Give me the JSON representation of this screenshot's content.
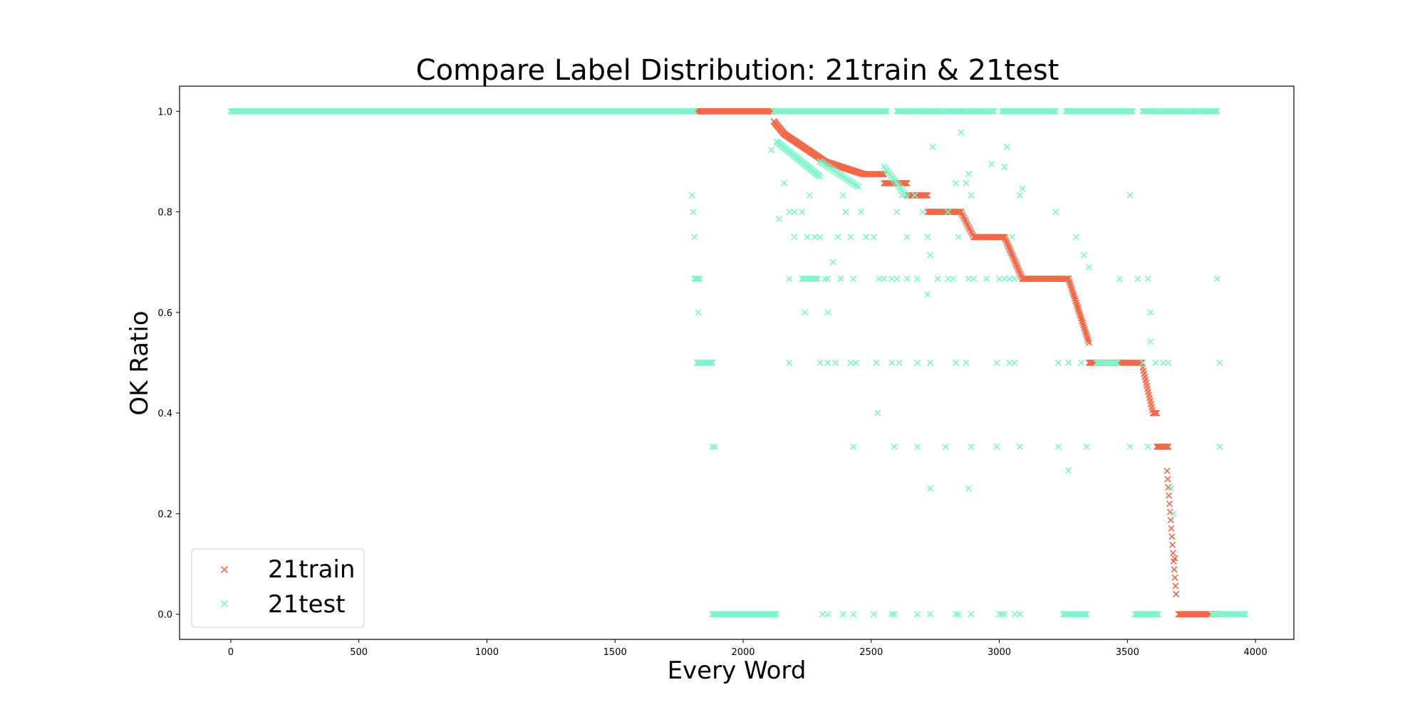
{
  "chart_data": {
    "type": "scatter",
    "title": "Compare Label Distribution: 21train & 21test",
    "xlabel": "Every Word",
    "ylabel": "OK Ratio",
    "xlim": [
      -200,
      4150
    ],
    "ylim": [
      -0.05,
      1.05
    ],
    "xticks": [
      0,
      500,
      1000,
      1500,
      2000,
      2500,
      3000,
      3500,
      4000
    ],
    "yticks": [
      0.0,
      0.2,
      0.4,
      0.6,
      0.8,
      1.0
    ],
    "xtick_labels": [
      "0",
      "500",
      "1000",
      "1500",
      "2000",
      "2500",
      "3000",
      "3500",
      "4000"
    ],
    "ytick_labels": [
      "0.0",
      "0.2",
      "0.4",
      "0.6",
      "0.8",
      "1.0"
    ],
    "grid": false,
    "legend": "lower-left",
    "marker": "x",
    "series": [
      {
        "name": "21train",
        "color": "#f26849",
        "segments": [
          {
            "x0": 1810,
            "x1": 2120,
            "y0": 1.0,
            "y1": 1.0,
            "n": 130
          },
          {
            "x0": 2120,
            "x1": 2160,
            "y0": 0.98,
            "y1": 0.955,
            "n": 14
          },
          {
            "x0": 2160,
            "x1": 2320,
            "y0": 0.955,
            "y1": 0.9,
            "n": 50
          },
          {
            "x0": 2320,
            "x1": 2470,
            "y0": 0.9,
            "y1": 0.875,
            "n": 45
          },
          {
            "x0": 2470,
            "x1": 2550,
            "y0": 0.875,
            "y1": 0.875,
            "n": 22
          },
          {
            "x0": 2550,
            "x1": 2640,
            "y0": 0.857,
            "y1": 0.857,
            "n": 24
          },
          {
            "x0": 2640,
            "x1": 2720,
            "y0": 0.833,
            "y1": 0.833,
            "n": 24
          },
          {
            "x0": 2720,
            "x1": 2850,
            "y0": 0.8,
            "y1": 0.8,
            "n": 38
          },
          {
            "x0": 2850,
            "x1": 2900,
            "y0": 0.8,
            "y1": 0.75,
            "n": 14
          },
          {
            "x0": 2900,
            "x1": 3020,
            "y0": 0.75,
            "y1": 0.75,
            "n": 34
          },
          {
            "x0": 3020,
            "x1": 3090,
            "y0": 0.75,
            "y1": 0.667,
            "n": 24
          },
          {
            "x0": 3090,
            "x1": 3270,
            "y0": 0.667,
            "y1": 0.667,
            "n": 50
          },
          {
            "x0": 3270,
            "x1": 3350,
            "y0": 0.667,
            "y1": 0.54,
            "n": 30
          },
          {
            "x0": 3350,
            "x1": 3560,
            "y0": 0.5,
            "y1": 0.5,
            "n": 56
          },
          {
            "x0": 3560,
            "x1": 3600,
            "y0": 0.49,
            "y1": 0.4,
            "n": 16
          },
          {
            "x0": 3600,
            "x1": 3615,
            "y0": 0.4,
            "y1": 0.4,
            "n": 5
          },
          {
            "x0": 3615,
            "x1": 3660,
            "y0": 0.333,
            "y1": 0.333,
            "n": 14
          },
          {
            "x0": 3655,
            "x1": 3690,
            "y0": 0.285,
            "y1": 0.04,
            "n": 16
          },
          {
            "x0": 3700,
            "x1": 3860,
            "y0": 0.0,
            "y1": 0.0,
            "n": 60
          }
        ],
        "points": [
          [
            3685,
            0.111
          ],
          [
            3690,
            0.04
          ]
        ]
      },
      {
        "name": "21test",
        "color": "#7ef5c8",
        "segments": [
          {
            "x0": 0,
            "x1": 1810,
            "y0": 1.0,
            "y1": 1.0,
            "n": 420
          },
          {
            "x0": 2120,
            "x1": 2560,
            "y0": 1.0,
            "y1": 1.0,
            "n": 90
          },
          {
            "x0": 2600,
            "x1": 2980,
            "y0": 1.0,
            "y1": 1.0,
            "n": 80
          },
          {
            "x0": 3010,
            "x1": 3220,
            "y0": 1.0,
            "y1": 1.0,
            "n": 50
          },
          {
            "x0": 3260,
            "x1": 3520,
            "y0": 1.0,
            "y1": 1.0,
            "n": 60
          },
          {
            "x0": 3560,
            "x1": 3850,
            "y0": 1.0,
            "y1": 1.0,
            "n": 60
          },
          {
            "x0": 1880,
            "x1": 2130,
            "y0": 0.0,
            "y1": 0.0,
            "n": 60
          },
          {
            "x0": 3250,
            "x1": 3340,
            "y0": 0.0,
            "y1": 0.0,
            "n": 20
          },
          {
            "x0": 3530,
            "x1": 3620,
            "y0": 0.0,
            "y1": 0.0,
            "n": 22
          },
          {
            "x0": 3830,
            "x1": 3960,
            "y0": 0.0,
            "y1": 0.0,
            "n": 28
          },
          {
            "x0": 1820,
            "x1": 1880,
            "y0": 0.5,
            "y1": 0.5,
            "n": 14
          },
          {
            "x0": 1810,
            "x1": 1830,
            "y0": 0.667,
            "y1": 0.667,
            "n": 5
          },
          {
            "x0": 2230,
            "x1": 2290,
            "y0": 0.667,
            "y1": 0.667,
            "n": 12
          },
          {
            "x0": 3380,
            "x1": 3460,
            "y0": 0.5,
            "y1": 0.5,
            "n": 14
          },
          {
            "x0": 2130,
            "x1": 2300,
            "y0": 0.94,
            "y1": 0.87,
            "n": 40
          },
          {
            "x0": 2300,
            "x1": 2450,
            "y0": 0.9,
            "y1": 0.85,
            "n": 26
          },
          {
            "x0": 2550,
            "x1": 2640,
            "y0": 0.89,
            "y1": 0.83,
            "n": 18
          }
        ],
        "points": [
          [
            1800,
            0.833
          ],
          [
            1805,
            0.8
          ],
          [
            1810,
            0.75
          ],
          [
            1825,
            0.6
          ],
          [
            1880,
            0.333
          ],
          [
            1890,
            0.333
          ],
          [
            2110,
            0.923
          ],
          [
            2140,
            0.786
          ],
          [
            2160,
            0.857
          ],
          [
            2180,
            0.8
          ],
          [
            2200,
            0.75
          ],
          [
            2200,
            0.8
          ],
          [
            2230,
            0.8
          ],
          [
            2240,
            0.6
          ],
          [
            2250,
            0.75
          ],
          [
            2260,
            0.833
          ],
          [
            2280,
            0.75
          ],
          [
            2300,
            0.75
          ],
          [
            2320,
            0.667
          ],
          [
            2330,
            0.6
          ],
          [
            2350,
            0.7
          ],
          [
            2370,
            0.75
          ],
          [
            2390,
            0.833
          ],
          [
            2400,
            0.8
          ],
          [
            2420,
            0.75
          ],
          [
            2430,
            0.667
          ],
          [
            2460,
            0.8
          ],
          [
            2480,
            0.75
          ],
          [
            2510,
            0.75
          ],
          [
            2525,
            0.4
          ],
          [
            2530,
            0.667
          ],
          [
            2580,
            0.667
          ],
          [
            2600,
            0.8
          ],
          [
            2620,
            0.833
          ],
          [
            2640,
            0.75
          ],
          [
            2670,
            0.833
          ],
          [
            2680,
            0.667
          ],
          [
            2700,
            0.8
          ],
          [
            2720,
            0.75
          ],
          [
            2730,
            0.714
          ],
          [
            2740,
            0.929
          ],
          [
            2760,
            0.667
          ],
          [
            2800,
            0.8
          ],
          [
            2830,
            0.857
          ],
          [
            2840,
            0.75
          ],
          [
            2850,
            0.958
          ],
          [
            2870,
            0.857
          ],
          [
            2880,
            0.875
          ],
          [
            2890,
            0.833
          ],
          [
            2900,
            0.667
          ],
          [
            2950,
            0.667
          ],
          [
            2970,
            0.895
          ],
          [
            3020,
            0.889
          ],
          [
            3030,
            0.929
          ],
          [
            3050,
            0.75
          ],
          [
            3060,
            0.667
          ],
          [
            3080,
            0.833
          ],
          [
            3090,
            0.846
          ],
          [
            3220,
            0.8
          ],
          [
            3270,
            0.286
          ],
          [
            3300,
            0.75
          ],
          [
            3330,
            0.714
          ],
          [
            3350,
            0.69
          ],
          [
            3470,
            0.667
          ],
          [
            3510,
            0.833
          ],
          [
            3540,
            0.667
          ],
          [
            3580,
            0.667
          ],
          [
            3590,
            0.6
          ],
          [
            3590,
            0.542
          ],
          [
            3670,
            0.25
          ],
          [
            3680,
            0.2
          ],
          [
            2180,
            0.5
          ],
          [
            2300,
            0.5
          ],
          [
            2330,
            0.5
          ],
          [
            2360,
            0.5
          ],
          [
            2420,
            0.5
          ],
          [
            2440,
            0.5
          ],
          [
            2520,
            0.5
          ],
          [
            2580,
            0.5
          ],
          [
            2610,
            0.5
          ],
          [
            2680,
            0.5
          ],
          [
            2730,
            0.5
          ],
          [
            2830,
            0.5
          ],
          [
            2870,
            0.5
          ],
          [
            2990,
            0.5
          ],
          [
            3040,
            0.5
          ],
          [
            3060,
            0.5
          ],
          [
            3230,
            0.5
          ],
          [
            3270,
            0.5
          ],
          [
            3320,
            0.5
          ],
          [
            3560,
            0.5
          ],
          [
            3610,
            0.5
          ],
          [
            3640,
            0.5
          ],
          [
            3660,
            0.5
          ],
          [
            3860,
            0.5
          ],
          [
            2430,
            0.333
          ],
          [
            2590,
            0.333
          ],
          [
            2680,
            0.333
          ],
          [
            2790,
            0.333
          ],
          [
            2890,
            0.333
          ],
          [
            2990,
            0.333
          ],
          [
            3080,
            0.333
          ],
          [
            3230,
            0.333
          ],
          [
            3340,
            0.333
          ],
          [
            3510,
            0.333
          ],
          [
            3580,
            0.333
          ],
          [
            3860,
            0.333
          ],
          [
            2730,
            0.25
          ],
          [
            2880,
            0.25
          ],
          [
            2180,
            0.667
          ],
          [
            2330,
            0.667
          ],
          [
            2380,
            0.667
          ],
          [
            2550,
            0.667
          ],
          [
            2600,
            0.667
          ],
          [
            2640,
            0.667
          ],
          [
            2720,
            0.636
          ],
          [
            2800,
            0.667
          ],
          [
            2820,
            0.667
          ],
          [
            2880,
            0.667
          ],
          [
            3000,
            0.667
          ],
          [
            3020,
            0.667
          ],
          [
            3040,
            0.667
          ],
          [
            3850,
            0.667
          ],
          [
            2310,
            0.0
          ],
          [
            2330,
            0.0
          ],
          [
            2390,
            0.0
          ],
          [
            2430,
            0.0
          ],
          [
            2510,
            0.0
          ],
          [
            2580,
            0.0
          ],
          [
            2590,
            0.0
          ],
          [
            2680,
            0.0
          ],
          [
            2730,
            0.0
          ],
          [
            2830,
            0.0
          ],
          [
            2840,
            0.0
          ],
          [
            2890,
            0.0
          ],
          [
            3000,
            0.0
          ],
          [
            3010,
            0.0
          ],
          [
            3020,
            0.0
          ],
          [
            3060,
            0.0
          ],
          [
            3080,
            0.0
          ]
        ]
      }
    ]
  }
}
